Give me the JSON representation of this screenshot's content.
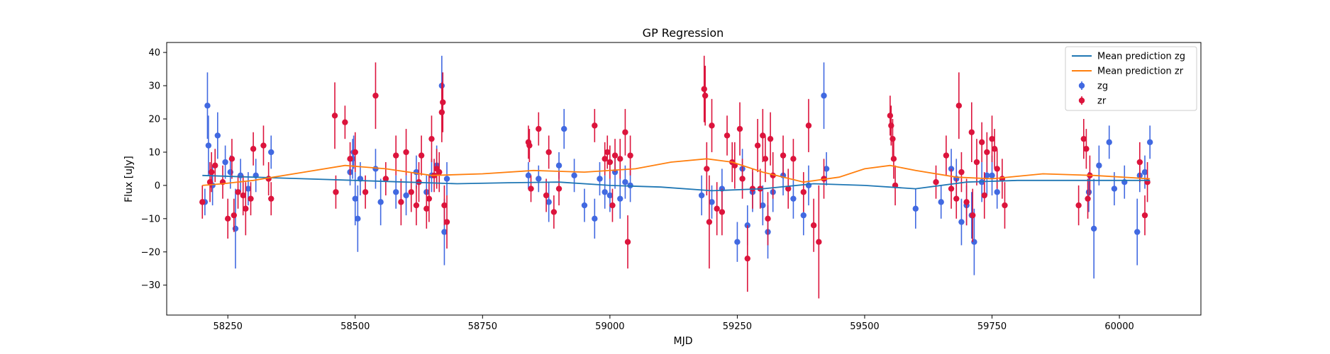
{
  "chart_data": {
    "type": "scatter",
    "title": "GP Regression",
    "xlabel": "MJD",
    "ylabel": "Flux [uJy]",
    "xlim": [
      58130,
      60160
    ],
    "ylim": [
      -39,
      43
    ],
    "xticks": [
      58250,
      58500,
      58750,
      59000,
      59250,
      59500,
      59750,
      60000
    ],
    "yticks": [
      -30,
      -20,
      -10,
      0,
      10,
      20,
      30,
      40
    ],
    "grid": false,
    "legend": "top-right",
    "colors": {
      "zg_points": "#4169e1",
      "zr_points": "#dc143c",
      "zg_line": "#1f77b4",
      "zr_line": "#ff7f0e"
    },
    "legend_entries": [
      {
        "label": "Mean prediction zg",
        "kind": "line",
        "color": "#1f77b4"
      },
      {
        "label": "Mean prediction zr",
        "kind": "line",
        "color": "#ff7f0e"
      },
      {
        "label": "zg",
        "kind": "errorbar",
        "color": "#4169e1"
      },
      {
        "label": "zr",
        "kind": "errorbar",
        "color": "#dc143c"
      }
    ],
    "series": [
      {
        "name": "Mean prediction zg",
        "kind": "line",
        "x": [
          58200,
          58300,
          58400,
          58500,
          58600,
          58700,
          58800,
          58900,
          59000,
          59100,
          59200,
          59300,
          59400,
          59500,
          59600,
          59700,
          59800,
          59900,
          60000,
          60060
        ],
        "y": [
          3.0,
          2.5,
          2.0,
          1.5,
          1.0,
          0.5,
          0.8,
          1.0,
          0.0,
          -0.5,
          -1.6,
          -1.0,
          0.5,
          0.0,
          -1.0,
          1.0,
          1.5,
          1.5,
          1.5,
          1.5
        ]
      },
      {
        "name": "Mean prediction zr",
        "kind": "line",
        "x": [
          58200,
          58240,
          58300,
          58400,
          58480,
          58560,
          58650,
          58750,
          58850,
          58950,
          59050,
          59120,
          59190,
          59240,
          59300,
          59380,
          59450,
          59500,
          59550,
          59600,
          59680,
          59750,
          59850,
          59950,
          60060
        ],
        "y": [
          0.0,
          0.5,
          1.5,
          4.0,
          6.0,
          5.0,
          3.0,
          3.5,
          4.5,
          4.0,
          5.0,
          7.0,
          8.0,
          7.0,
          4.0,
          1.0,
          2.5,
          5.0,
          6.0,
          4.5,
          2.5,
          2.0,
          3.5,
          3.0,
          2.0
        ]
      },
      {
        "name": "zg",
        "kind": "errorbar",
        "points": [
          [
            58205,
            -5,
            4
          ],
          [
            58210,
            24,
            10
          ],
          [
            58212,
            12,
            9
          ],
          [
            58220,
            0,
            6
          ],
          [
            58230,
            15,
            7
          ],
          [
            58245,
            7,
            5
          ],
          [
            58255,
            4,
            5
          ],
          [
            58265,
            -13,
            12
          ],
          [
            58275,
            3,
            5
          ],
          [
            58290,
            -1,
            5
          ],
          [
            58305,
            3,
            5
          ],
          [
            58335,
            10,
            5
          ],
          [
            58490,
            4,
            4
          ],
          [
            58495,
            8,
            6
          ],
          [
            58497,
            10,
            5
          ],
          [
            58500,
            -4,
            8
          ],
          [
            58505,
            -10,
            10
          ],
          [
            58510,
            2,
            5
          ],
          [
            58540,
            5,
            6
          ],
          [
            58550,
            -5,
            7
          ],
          [
            58580,
            -2,
            5
          ],
          [
            58600,
            -3,
            6
          ],
          [
            58620,
            4,
            5
          ],
          [
            58640,
            -2,
            5
          ],
          [
            58650,
            3,
            5
          ],
          [
            58660,
            6,
            6
          ],
          [
            58670,
            30,
            9
          ],
          [
            58675,
            -14,
            10
          ],
          [
            58680,
            2,
            5
          ],
          [
            58840,
            3,
            4
          ],
          [
            58860,
            2,
            4
          ],
          [
            58880,
            -5,
            6
          ],
          [
            58900,
            6,
            4
          ],
          [
            58910,
            17,
            6
          ],
          [
            58930,
            3,
            5
          ],
          [
            58950,
            -6,
            5
          ],
          [
            58970,
            -10,
            6
          ],
          [
            58980,
            2,
            5
          ],
          [
            58990,
            -2,
            5
          ],
          [
            59000,
            -3,
            5
          ],
          [
            59010,
            4,
            5
          ],
          [
            59020,
            -4,
            6
          ],
          [
            59030,
            1,
            5
          ],
          [
            59040,
            0,
            5
          ],
          [
            59180,
            -3,
            6
          ],
          [
            59200,
            -5,
            5
          ],
          [
            59220,
            -1,
            6
          ],
          [
            59250,
            -17,
            6
          ],
          [
            59260,
            5,
            6
          ],
          [
            59270,
            -12,
            6
          ],
          [
            59280,
            -2,
            6
          ],
          [
            59300,
            -6,
            6
          ],
          [
            59310,
            -14,
            8
          ],
          [
            59320,
            -2,
            6
          ],
          [
            59340,
            3,
            6
          ],
          [
            59360,
            -4,
            6
          ],
          [
            59380,
            -9,
            6
          ],
          [
            59390,
            0,
            6
          ],
          [
            59420,
            27,
            10
          ],
          [
            59425,
            5,
            5
          ],
          [
            59600,
            -7,
            6
          ],
          [
            59650,
            -5,
            5
          ],
          [
            59670,
            5,
            6
          ],
          [
            59680,
            2,
            6
          ],
          [
            59690,
            -11,
            7
          ],
          [
            59700,
            -6,
            6
          ],
          [
            59710,
            -9,
            7
          ],
          [
            59715,
            -17,
            10
          ],
          [
            59730,
            1,
            6
          ],
          [
            59740,
            3,
            6
          ],
          [
            59750,
            3,
            6
          ],
          [
            59760,
            -2,
            5
          ],
          [
            59940,
            -2,
            6
          ],
          [
            59950,
            -13,
            15
          ],
          [
            59960,
            6,
            6
          ],
          [
            59980,
            13,
            5
          ],
          [
            59990,
            -1,
            5
          ],
          [
            60010,
            1,
            5
          ],
          [
            60035,
            -14,
            10
          ],
          [
            60040,
            3,
            5
          ],
          [
            60050,
            4,
            5
          ],
          [
            60060,
            13,
            5
          ]
        ]
      },
      {
        "name": "zr",
        "kind": "errorbar",
        "points": [
          [
            58200,
            -5,
            5
          ],
          [
            58215,
            1,
            6
          ],
          [
            58218,
            4,
            6
          ],
          [
            58225,
            6,
            5
          ],
          [
            58240,
            1,
            5
          ],
          [
            58250,
            -10,
            6
          ],
          [
            58258,
            8,
            6
          ],
          [
            58262,
            -9,
            5
          ],
          [
            58270,
            -2,
            5
          ],
          [
            58280,
            -3,
            6
          ],
          [
            58285,
            -7,
            8
          ],
          [
            58295,
            -4,
            5
          ],
          [
            58300,
            11,
            5
          ],
          [
            58320,
            12,
            6
          ],
          [
            58330,
            2,
            5
          ],
          [
            58335,
            -4,
            5
          ],
          [
            58460,
            21,
            10
          ],
          [
            58462,
            -2,
            5
          ],
          [
            58480,
            19,
            5
          ],
          [
            58490,
            8,
            5
          ],
          [
            58500,
            10,
            6
          ],
          [
            58520,
            -2,
            5
          ],
          [
            58540,
            27,
            10
          ],
          [
            58560,
            2,
            5
          ],
          [
            58580,
            9,
            6
          ],
          [
            58590,
            -5,
            7
          ],
          [
            58600,
            10,
            7
          ],
          [
            58610,
            -2,
            6
          ],
          [
            58620,
            -6,
            6
          ],
          [
            58625,
            1,
            6
          ],
          [
            58630,
            9,
            6
          ],
          [
            58640,
            -7,
            6
          ],
          [
            58645,
            -4,
            7
          ],
          [
            58650,
            14,
            7
          ],
          [
            58655,
            3,
            5
          ],
          [
            58660,
            5,
            6
          ],
          [
            58665,
            4,
            6
          ],
          [
            58670,
            22,
            9
          ],
          [
            58672,
            25,
            9
          ],
          [
            58675,
            -6,
            6
          ],
          [
            58680,
            -11,
            8
          ],
          [
            58840,
            13,
            5
          ],
          [
            58842,
            12,
            5
          ],
          [
            58845,
            -1,
            4
          ],
          [
            58860,
            17,
            5
          ],
          [
            58875,
            -3,
            5
          ],
          [
            58880,
            10,
            5
          ],
          [
            58890,
            -8,
            5
          ],
          [
            58900,
            -1,
            5
          ],
          [
            58970,
            18,
            5
          ],
          [
            58990,
            8,
            5
          ],
          [
            58995,
            10,
            5
          ],
          [
            59000,
            7,
            5
          ],
          [
            59005,
            -6,
            5
          ],
          [
            59010,
            9,
            5
          ],
          [
            59020,
            8,
            6
          ],
          [
            59030,
            16,
            7
          ],
          [
            59035,
            -17,
            8
          ],
          [
            59040,
            9,
            6
          ],
          [
            59185,
            29,
            10
          ],
          [
            59187,
            27,
            9
          ],
          [
            59190,
            5,
            8
          ],
          [
            59195,
            -11,
            14
          ],
          [
            59200,
            18,
            8
          ],
          [
            59210,
            -7,
            8
          ],
          [
            59220,
            -8,
            7
          ],
          [
            59230,
            15,
            6
          ],
          [
            59240,
            7,
            6
          ],
          [
            59245,
            6,
            7
          ],
          [
            59255,
            17,
            8
          ],
          [
            59260,
            2,
            6
          ],
          [
            59270,
            -22,
            10
          ],
          [
            59280,
            -1,
            6
          ],
          [
            59290,
            12,
            8
          ],
          [
            59295,
            -1,
            6
          ],
          [
            59300,
            15,
            8
          ],
          [
            59305,
            8,
            7
          ],
          [
            59310,
            -10,
            8
          ],
          [
            59315,
            14,
            8
          ],
          [
            59320,
            3,
            7
          ],
          [
            59340,
            9,
            6
          ],
          [
            59350,
            -1,
            6
          ],
          [
            59360,
            8,
            6
          ],
          [
            59380,
            -2,
            6
          ],
          [
            59390,
            18,
            8
          ],
          [
            59400,
            -12,
            8
          ],
          [
            59410,
            -17,
            17
          ],
          [
            59420,
            2,
            6
          ],
          [
            59550,
            21,
            6
          ],
          [
            59552,
            18,
            6
          ],
          [
            59555,
            14,
            6
          ],
          [
            59557,
            8,
            6
          ],
          [
            59560,
            0,
            6
          ],
          [
            59640,
            1,
            5
          ],
          [
            59660,
            9,
            6
          ],
          [
            59670,
            -1,
            6
          ],
          [
            59680,
            -4,
            6
          ],
          [
            59685,
            24,
            10
          ],
          [
            59690,
            4,
            6
          ],
          [
            59700,
            -5,
            7
          ],
          [
            59710,
            16,
            9
          ],
          [
            59712,
            -9,
            8
          ],
          [
            59720,
            7,
            7
          ],
          [
            59730,
            13,
            6
          ],
          [
            59735,
            -3,
            7
          ],
          [
            59740,
            10,
            6
          ],
          [
            59750,
            14,
            7
          ],
          [
            59755,
            11,
            6
          ],
          [
            59760,
            5,
            6
          ],
          [
            59770,
            2,
            6
          ],
          [
            59775,
            -6,
            7
          ],
          [
            59920,
            -6,
            6
          ],
          [
            59930,
            14,
            6
          ],
          [
            59935,
            11,
            6
          ],
          [
            59938,
            -4,
            6
          ],
          [
            59942,
            3,
            6
          ],
          [
            60040,
            7,
            6
          ],
          [
            60050,
            -9,
            6
          ],
          [
            60055,
            1,
            6
          ]
        ]
      }
    ]
  }
}
